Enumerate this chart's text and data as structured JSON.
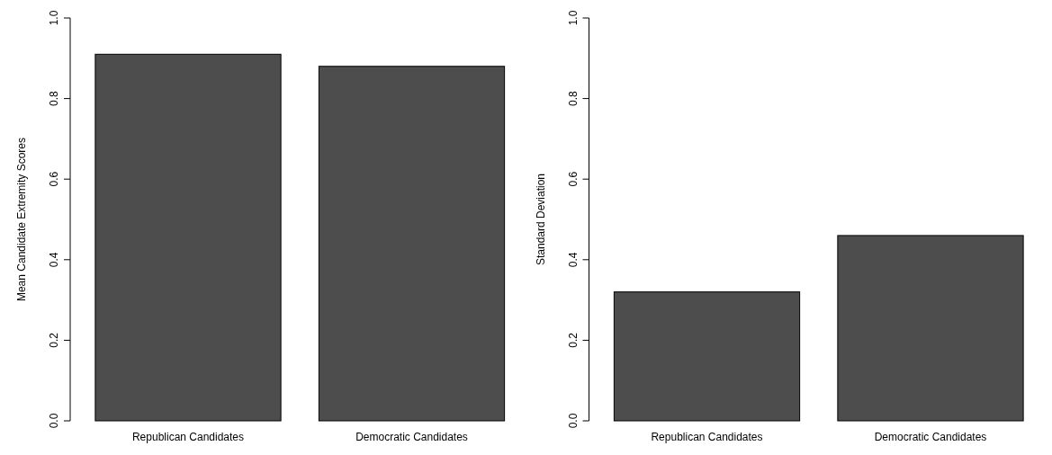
{
  "chart_data": [
    {
      "type": "bar",
      "ylabel": "Mean Candidate Extremity Scores",
      "categories": [
        "Republican Candidates",
        "Democratic Candidates"
      ],
      "values": [
        0.91,
        0.88
      ],
      "color": "#4d4d4d",
      "ylim": [
        0,
        1
      ],
      "yticks": [
        {
          "value": 0,
          "label": "0.0"
        },
        {
          "value": 0.2,
          "label": "0.2"
        },
        {
          "value": 0.4,
          "label": "0.4"
        },
        {
          "value": 0.6,
          "label": "0.6"
        },
        {
          "value": 0.8,
          "label": "0.8"
        },
        {
          "value": 1,
          "label": "1.0"
        }
      ],
      "grid": false
    },
    {
      "type": "bar",
      "ylabel": "Standard Deviation",
      "categories": [
        "Republican Candidates",
        "Democratic Candidates"
      ],
      "values": [
        0.32,
        0.46
      ],
      "color": "#4d4d4d",
      "ylim": [
        0,
        1
      ],
      "yticks": [
        {
          "value": 0,
          "label": "0.0"
        },
        {
          "value": 0.2,
          "label": "0.2"
        },
        {
          "value": 0.4,
          "label": "0.4"
        },
        {
          "value": 0.6,
          "label": "0.6"
        },
        {
          "value": 0.8,
          "label": "0.8"
        },
        {
          "value": 1,
          "label": "1.0"
        }
      ],
      "grid": false
    }
  ]
}
